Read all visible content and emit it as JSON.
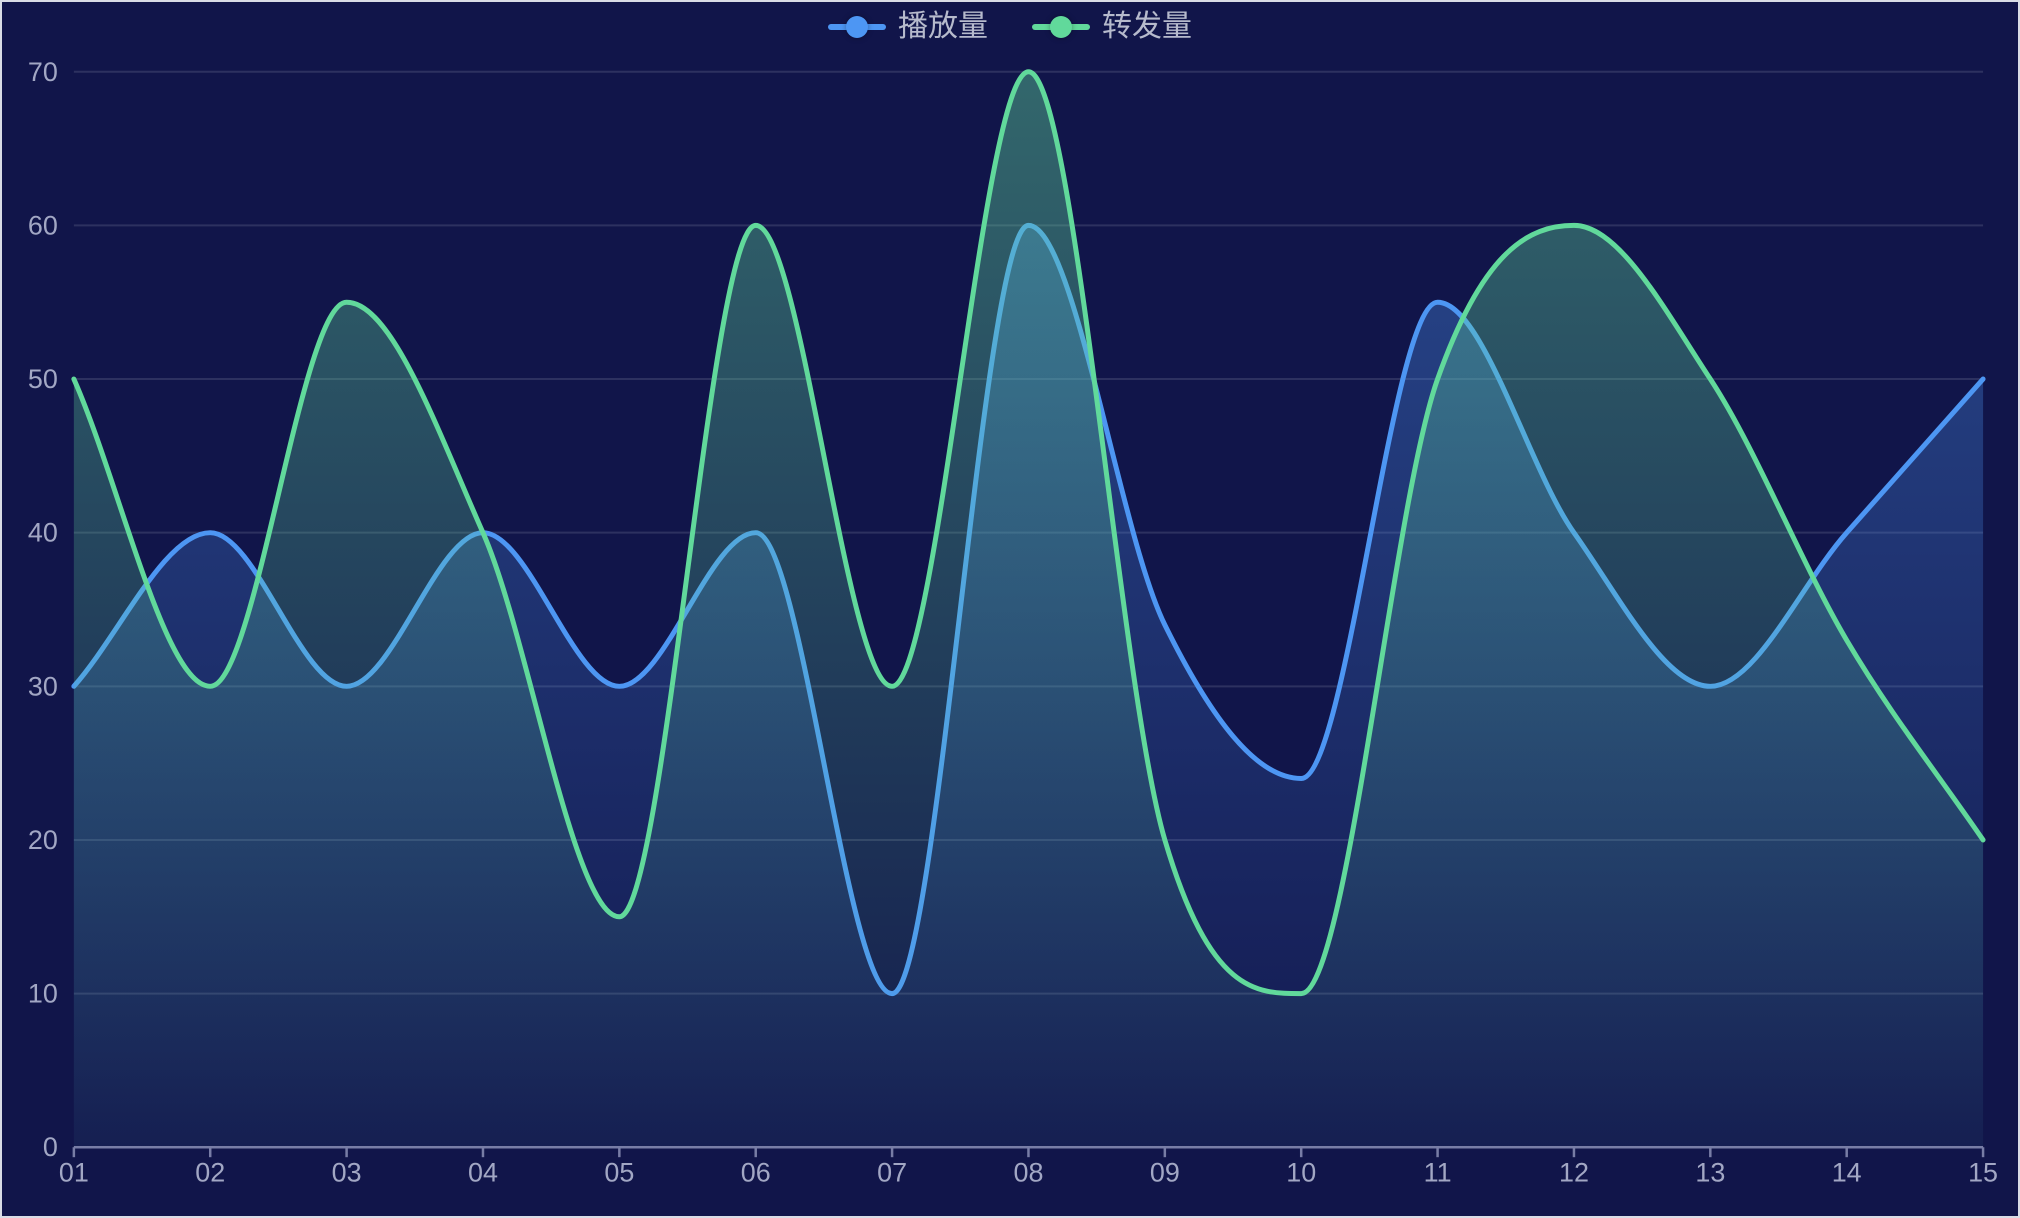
{
  "chart_data": {
    "type": "line",
    "smooth": true,
    "area": true,
    "grid": true,
    "legend_position": "top-center",
    "categories": [
      "01",
      "02",
      "03",
      "04",
      "05",
      "06",
      "07",
      "08",
      "09",
      "10",
      "11",
      "12",
      "13",
      "14",
      "15"
    ],
    "series": [
      {
        "name": "播放量",
        "color": "#4d96f3",
        "values": [
          30,
          40,
          30,
          40,
          30,
          40,
          10,
          60,
          34,
          24,
          55,
          40,
          30,
          40,
          50
        ]
      },
      {
        "name": "转发量",
        "color": "#61d99b",
        "values": [
          50,
          30,
          55,
          40,
          15,
          60,
          30,
          70,
          20,
          10,
          50,
          60,
          50,
          33,
          20
        ]
      }
    ],
    "xlabel": "",
    "ylabel": "",
    "ylim": [
      0,
      70
    ],
    "y_ticks": [
      0,
      10,
      20,
      30,
      40,
      50,
      60,
      70
    ]
  },
  "colors": {
    "background": "#11154a",
    "axis_line": "#787da6",
    "grid_line": "rgba(255,255,255,0.12)",
    "axis_label": "#a2a7c4",
    "legend_text": "#b6bacc",
    "series_blue": "#4d96f3",
    "series_green": "#61d99b"
  }
}
